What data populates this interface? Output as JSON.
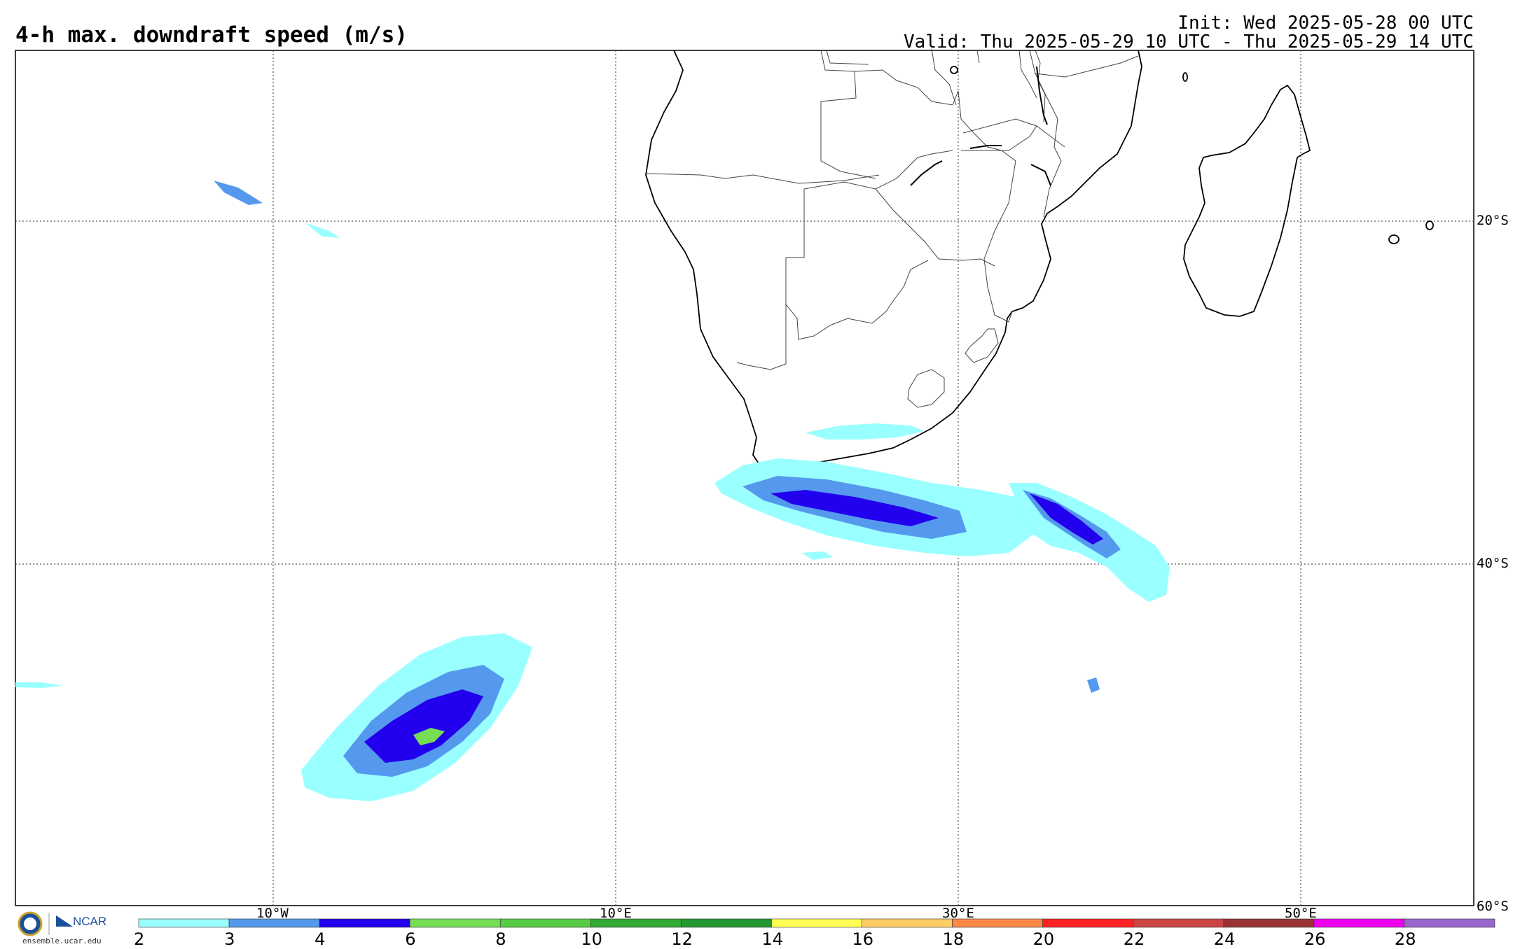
{
  "title": "4-h max. downdraft speed (m/s)",
  "init": "Init: Wed 2025-05-28 00 UTC",
  "valid": "Valid: Thu 2025-05-29 10 UTC - Thu 2025-05-29 14 UTC",
  "lat_labels": [
    "20°S",
    "40°S",
    "60°S"
  ],
  "lon_labels": [
    "10°W",
    "10°E",
    "30°E",
    "50°E"
  ],
  "colorbar": {
    "ticks": [
      "2",
      "3",
      "4",
      "6",
      "8",
      "10",
      "12",
      "14",
      "16",
      "18",
      "20",
      "22",
      "24",
      "26",
      "28"
    ],
    "colors": [
      "#99ffff",
      "#5599ee",
      "#2200ee",
      "#77dd55",
      "#55cc44",
      "#33aa33",
      "#229933",
      "#ffff55",
      "#ffcc66",
      "#ff8844",
      "#ff2222",
      "#cc4444",
      "#993333",
      "#ee00ee",
      "#9966cc"
    ]
  },
  "logo": {
    "brand": "NCAR",
    "site": "ensemble.ucar.edu"
  }
}
